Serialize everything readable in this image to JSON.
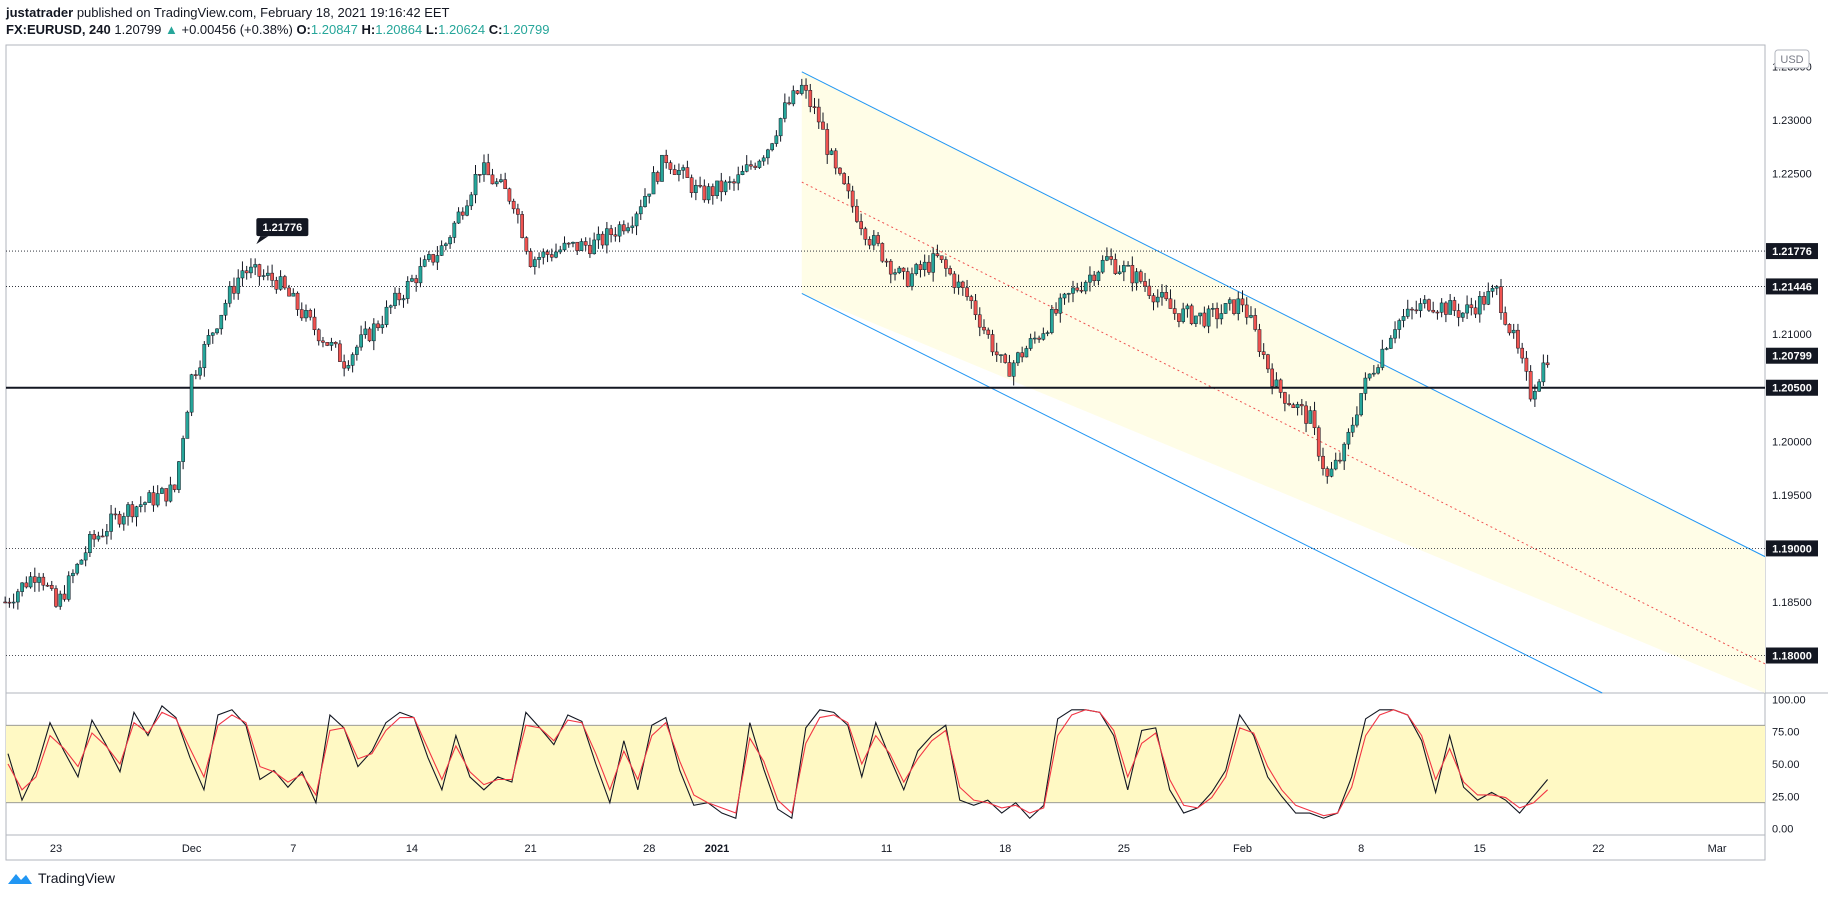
{
  "header": {
    "author": "justatrader",
    "published": "published on TradingView.com, February 18, 2021 19:16:42 EET",
    "symbol": "FX:EURUSD, 240",
    "last": "1.20799",
    "change": "+0.00456 (+0.38%)",
    "o_label": "O:",
    "o": "1.20847",
    "h_label": "H:",
    "h": "1.20864",
    "l_label": "L:",
    "l": "1.20624",
    "c_label": "C:",
    "c": "1.20799"
  },
  "footer": {
    "brand": "TradingView"
  },
  "currency_badge": "USD",
  "colors": {
    "up": "#26a69a",
    "down": "#ef5350",
    "channel": "#2196f3",
    "fill": "#fffde7",
    "stoch_band": "#fff9c4",
    "k": "#131722",
    "d": "#f23645"
  },
  "chart_data": [
    {
      "type": "candlestick",
      "series_name": "EURUSD",
      "ylim": [
        1.1765,
        1.237
      ],
      "y_ticks": [
        1.185,
        1.195,
        1.2,
        1.21,
        1.225,
        1.23,
        1.235
      ],
      "y_tick_labels": [
        "1.18500",
        "1.19500",
        "1.20000",
        "1.21000",
        "1.22500",
        "1.23000",
        "1.23500"
      ],
      "x_ticks": [
        "23",
        "Dec",
        "7",
        "14",
        "21",
        "28",
        "2021",
        "11",
        "18",
        "25",
        "Feb",
        "8",
        "15",
        "22",
        "Mar"
      ],
      "horizontal_lines": [
        {
          "price": 1.21776,
          "label": "1.21776",
          "style": "dotted"
        },
        {
          "price": 1.21446,
          "label": "1.21446",
          "style": "dotted"
        },
        {
          "price": 1.20799,
          "label": "1.20799",
          "style": "none"
        },
        {
          "price": 1.205,
          "label": "1.20500",
          "style": "solid"
        },
        {
          "price": 1.19,
          "label": "1.19000",
          "style": "dotted"
        },
        {
          "price": 1.18,
          "label": "1.18000",
          "style": "dotted"
        }
      ],
      "callout": {
        "label": "1.21776",
        "date": "Dec 6",
        "price": 1.21776
      },
      "channel": {
        "start_date": "Jan 6",
        "upper": [
          {
            "date": "Jan 6",
            "price": 1.2345
          },
          {
            "date": "Mar 6",
            "price": 1.1875
          }
        ],
        "middle": [
          {
            "date": "Jan 6",
            "price": 1.2242
          },
          {
            "date": "Mar 6",
            "price": 1.1775
          }
        ],
        "lower": [
          {
            "date": "Jan 6",
            "price": 1.2138
          },
          {
            "date": "Mar 6",
            "price": 1.1672
          }
        ]
      },
      "anchors": [
        {
          "date": "Nov 20",
          "price": 1.185
        },
        {
          "date": "Nov 22",
          "price": 1.188
        },
        {
          "date": "Nov 23",
          "price": 1.1845
        },
        {
          "date": "Nov 25",
          "price": 1.1905
        },
        {
          "date": "Nov 27",
          "price": 1.1935
        },
        {
          "date": "Nov 30",
          "price": 1.1955
        },
        {
          "date": "Dec 1",
          "price": 1.206
        },
        {
          "date": "Dec 3",
          "price": 1.213
        },
        {
          "date": "Dec 4",
          "price": 1.216
        },
        {
          "date": "Dec 6",
          "price": 1.215
        },
        {
          "date": "Dec 8",
          "price": 1.211
        },
        {
          "date": "Dec 10",
          "price": 1.2075
        },
        {
          "date": "Dec 12",
          "price": 1.211
        },
        {
          "date": "Dec 14",
          "price": 1.215
        },
        {
          "date": "Dec 16",
          "price": 1.2185
        },
        {
          "date": "Dec 18",
          "price": 1.2255
        },
        {
          "date": "Dec 20",
          "price": 1.2225
        },
        {
          "date": "Dec 21",
          "price": 1.217
        },
        {
          "date": "Dec 23",
          "price": 1.218
        },
        {
          "date": "Dec 25",
          "price": 1.2185
        },
        {
          "date": "Dec 27",
          "price": 1.221
        },
        {
          "date": "Dec 29",
          "price": 1.2265
        },
        {
          "date": "Dec 31",
          "price": 1.223
        },
        {
          "date": "Jan 2",
          "price": 1.224
        },
        {
          "date": "Jan 4",
          "price": 1.2275
        },
        {
          "date": "Jan 5",
          "price": 1.231
        },
        {
          "date": "Jan 6",
          "price": 1.233
        },
        {
          "date": "Jan 7",
          "price": 1.23
        },
        {
          "date": "Jan 8",
          "price": 1.225
        },
        {
          "date": "Jan 10",
          "price": 1.219
        },
        {
          "date": "Jan 12",
          "price": 1.215
        },
        {
          "date": "Jan 14",
          "price": 1.217
        },
        {
          "date": "Jan 16",
          "price": 1.213
        },
        {
          "date": "Jan 18",
          "price": 1.2065
        },
        {
          "date": "Jan 20",
          "price": 1.21
        },
        {
          "date": "Jan 22",
          "price": 1.214
        },
        {
          "date": "Jan 24",
          "price": 1.217
        },
        {
          "date": "Jan 26",
          "price": 1.215
        },
        {
          "date": "Jan 28",
          "price": 1.212
        },
        {
          "date": "Jan 30",
          "price": 1.2115
        },
        {
          "date": "Feb 1",
          "price": 1.213
        },
        {
          "date": "Feb 3",
          "price": 1.205
        },
        {
          "date": "Feb 5",
          "price": 1.202
        },
        {
          "date": "Feb 6",
          "price": 1.1965
        },
        {
          "date": "Feb 7",
          "price": 1.199
        },
        {
          "date": "Feb 8",
          "price": 1.2045
        },
        {
          "date": "Feb 10",
          "price": 1.211
        },
        {
          "date": "Feb 12",
          "price": 1.213
        },
        {
          "date": "Feb 14",
          "price": 1.212
        },
        {
          "date": "Feb 16",
          "price": 1.214
        },
        {
          "date": "Feb 17",
          "price": 1.2095
        },
        {
          "date": "Feb 18",
          "price": 1.2045
        },
        {
          "date": "Feb 19",
          "price": 1.208
        }
      ]
    },
    {
      "type": "line",
      "indicator": "stochastic",
      "ylim": [
        -5,
        105
      ],
      "y_tick_labels": [
        "100.00",
        "75.00",
        "50.00",
        "25.00",
        "0.00"
      ],
      "y_ticks": [
        100,
        75,
        50,
        25,
        0
      ],
      "bands": [
        20,
        80
      ],
      "series": [
        {
          "values": [
            58,
            22,
            45,
            82,
            60,
            40,
            84,
            65,
            44,
            90,
            72,
            95,
            86,
            55,
            30,
            88,
            92,
            80,
            38,
            45,
            32,
            44,
            20,
            88,
            78,
            48,
            60,
            82,
            90,
            86,
            55,
            30,
            72,
            40,
            30,
            40,
            36,
            90,
            78,
            65,
            88,
            83,
            50,
            20,
            68,
            30,
            80,
            86,
            45,
            18,
            20,
            12,
            8,
            82,
            46,
            15,
            8,
            78,
            92,
            90,
            80,
            40,
            82,
            55,
            30,
            60,
            72,
            80,
            22,
            18,
            22,
            12,
            20,
            8,
            18,
            85,
            92,
            92,
            90,
            72,
            30,
            76,
            78,
            30,
            12,
            16,
            28,
            45,
            88,
            72,
            40,
            25,
            12,
            12,
            8,
            12,
            40,
            85,
            92,
            92,
            88,
            68,
            28,
            72,
            32,
            22,
            28,
            22,
            12,
            25,
            38
          ]
        },
        {
          "values": [
            50,
            30,
            40,
            72,
            62,
            48,
            74,
            64,
            50,
            82,
            74,
            90,
            85,
            62,
            40,
            80,
            88,
            82,
            48,
            44,
            36,
            42,
            26,
            76,
            78,
            54,
            58,
            76,
            86,
            86,
            62,
            38,
            64,
            44,
            34,
            38,
            38,
            80,
            78,
            68,
            84,
            82,
            58,
            30,
            60,
            38,
            72,
            82,
            52,
            26,
            20,
            16,
            12,
            70,
            52,
            22,
            12,
            66,
            86,
            88,
            82,
            50,
            72,
            58,
            36,
            54,
            68,
            76,
            32,
            22,
            20,
            16,
            18,
            12,
            16,
            72,
            88,
            92,
            90,
            76,
            40,
            66,
            74,
            38,
            18,
            16,
            24,
            40,
            78,
            74,
            48,
            30,
            18,
            14,
            10,
            12,
            32,
            72,
            88,
            92,
            88,
            72,
            38,
            62,
            36,
            26,
            26,
            24,
            16,
            20,
            30
          ]
        }
      ]
    }
  ]
}
